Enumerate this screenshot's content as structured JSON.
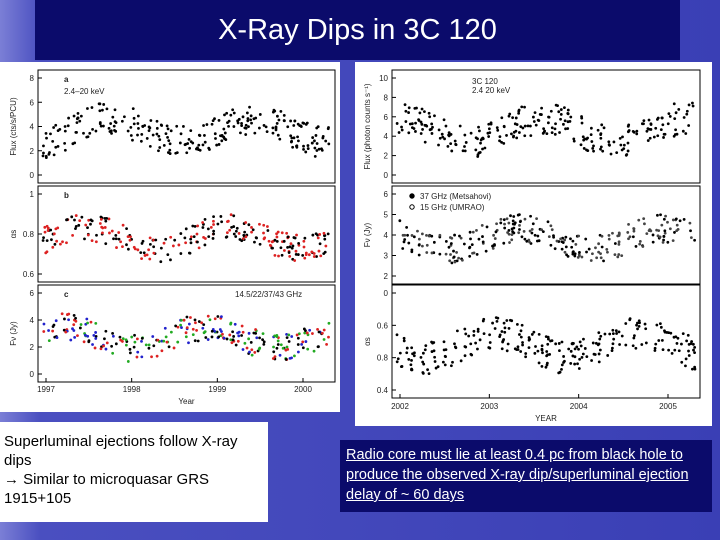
{
  "title": "X-Ray Dips in 3C 120",
  "left_figure": {
    "panels": [
      {
        "letter": "a",
        "label": "2.4–20 keV",
        "y_axis": "Flux (cts/s/PCU)",
        "ticks": [
          "8",
          "6",
          "4",
          "2",
          "0"
        ]
      },
      {
        "letter": "b",
        "label": "",
        "y_axis": "αs",
        "ticks": [
          "1",
          "0.8",
          "0.6"
        ]
      },
      {
        "letter": "c",
        "label": "14.5/22/37/43 GHz",
        "y_axis": "Fν (Jy)",
        "ticks": [
          "6",
          "4",
          "2",
          "0"
        ]
      }
    ],
    "x_ticks": [
      "1997",
      "1998",
      "1999",
      "2000"
    ],
    "x_axis": "Year"
  },
  "right_figure": {
    "panels": [
      {
        "label": "3C 120",
        "sublabel": "2.4 20 keV",
        "y_axis": "Flux (photon counts s⁻¹)",
        "ticks": [
          "10",
          "8",
          "6",
          "4",
          "2",
          "0"
        ]
      },
      {
        "legend": [
          "37 GHz (Metsahovi)",
          "15 GHz (UMRAO)"
        ],
        "y_axis": "Fν (Jy)",
        "ticks": [
          "6",
          "5",
          "4",
          "3",
          "2"
        ]
      },
      {
        "y_axis": "αs",
        "ticks": [
          "0",
          "0.6",
          "0.8",
          "0.4"
        ]
      }
    ],
    "x_ticks": [
      "2002",
      "2003",
      "2004",
      "2005"
    ],
    "x_axis": "YEAR"
  },
  "left_note": {
    "line1": "Superluminal ejections follow X-ray dips",
    "line2": "→ Similar to microquasar GRS 1915+105"
  },
  "right_note": "Radio core must lie at least 0.4 pc from black hole to produce the observed X-ray dip/superluminal ejection delay of ~ 60 days"
}
